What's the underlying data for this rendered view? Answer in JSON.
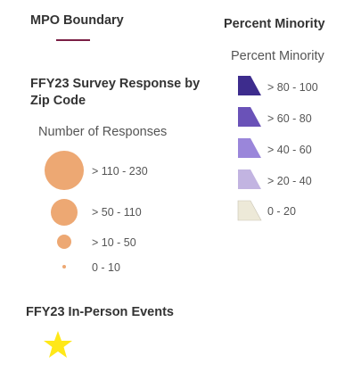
{
  "mpo": {
    "title": "MPO Boundary",
    "line_color": "#7a1f45"
  },
  "survey": {
    "title": "FFY23 Survey Response by Zip Code",
    "subtitle": "Number of Responses",
    "circle_color": "#eda873",
    "classes": [
      {
        "label": "> 110 - 230"
      },
      {
        "label": "> 50 - 110"
      },
      {
        "label": "> 10 - 50"
      },
      {
        "label": "0 - 10"
      }
    ]
  },
  "events": {
    "title": "FFY23 In-Person Events",
    "icon": "star-icon",
    "icon_color": "#ffe818"
  },
  "minority": {
    "title": "Percent Minority",
    "subtitle": "Percent Minority",
    "classes": [
      {
        "label": "> 80 - 100",
        "color": "#3d2c8d"
      },
      {
        "label": "> 60 - 80",
        "color": "#6a52b8"
      },
      {
        "label": "> 40 - 60",
        "color": "#9a86da"
      },
      {
        "label": "> 20 - 40",
        "color": "#c2b4e1"
      },
      {
        "label": "0 - 20",
        "color": "#ede9d8"
      }
    ]
  }
}
